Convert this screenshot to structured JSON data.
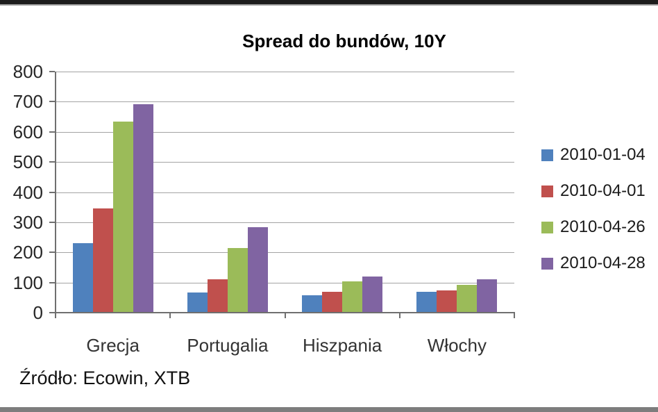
{
  "chart_data": {
    "type": "bar",
    "title": "Spread do bundów, 10Y",
    "categories": [
      "Grecja",
      "Portugalia",
      "Hiszpania",
      "Włochy"
    ],
    "series": [
      {
        "name": "2010-01-04",
        "color": "#4F81BD",
        "values": [
          230,
          67,
          58,
          69
        ]
      },
      {
        "name": "2010-04-01",
        "color": "#C0504D",
        "values": [
          345,
          110,
          70,
          73
        ]
      },
      {
        "name": "2010-04-26",
        "color": "#9BBB59",
        "values": [
          635,
          215,
          104,
          92
        ]
      },
      {
        "name": "2010-04-28",
        "color": "#8064A2",
        "values": [
          692,
          283,
          119,
          110
        ]
      }
    ],
    "xlabel": "",
    "ylabel": "",
    "ylim": [
      0,
      800
    ],
    "ytick_interval": 100,
    "ytick_labels": [
      "0",
      "100",
      "200",
      "300",
      "400",
      "500",
      "600",
      "700",
      "800"
    ],
    "grid": true,
    "legend_position": "right"
  },
  "source_note": "Źródło: Ecowin, XTB",
  "style": {
    "gridline_color": "#a3a3a3",
    "axis_color": "#6f6f6f",
    "top_bar_color": "#1c1c1c",
    "top_bar_edge_color": "#9b9b9b",
    "bottom_bar_color": "#7d7d7d",
    "background": "#ffffff"
  }
}
